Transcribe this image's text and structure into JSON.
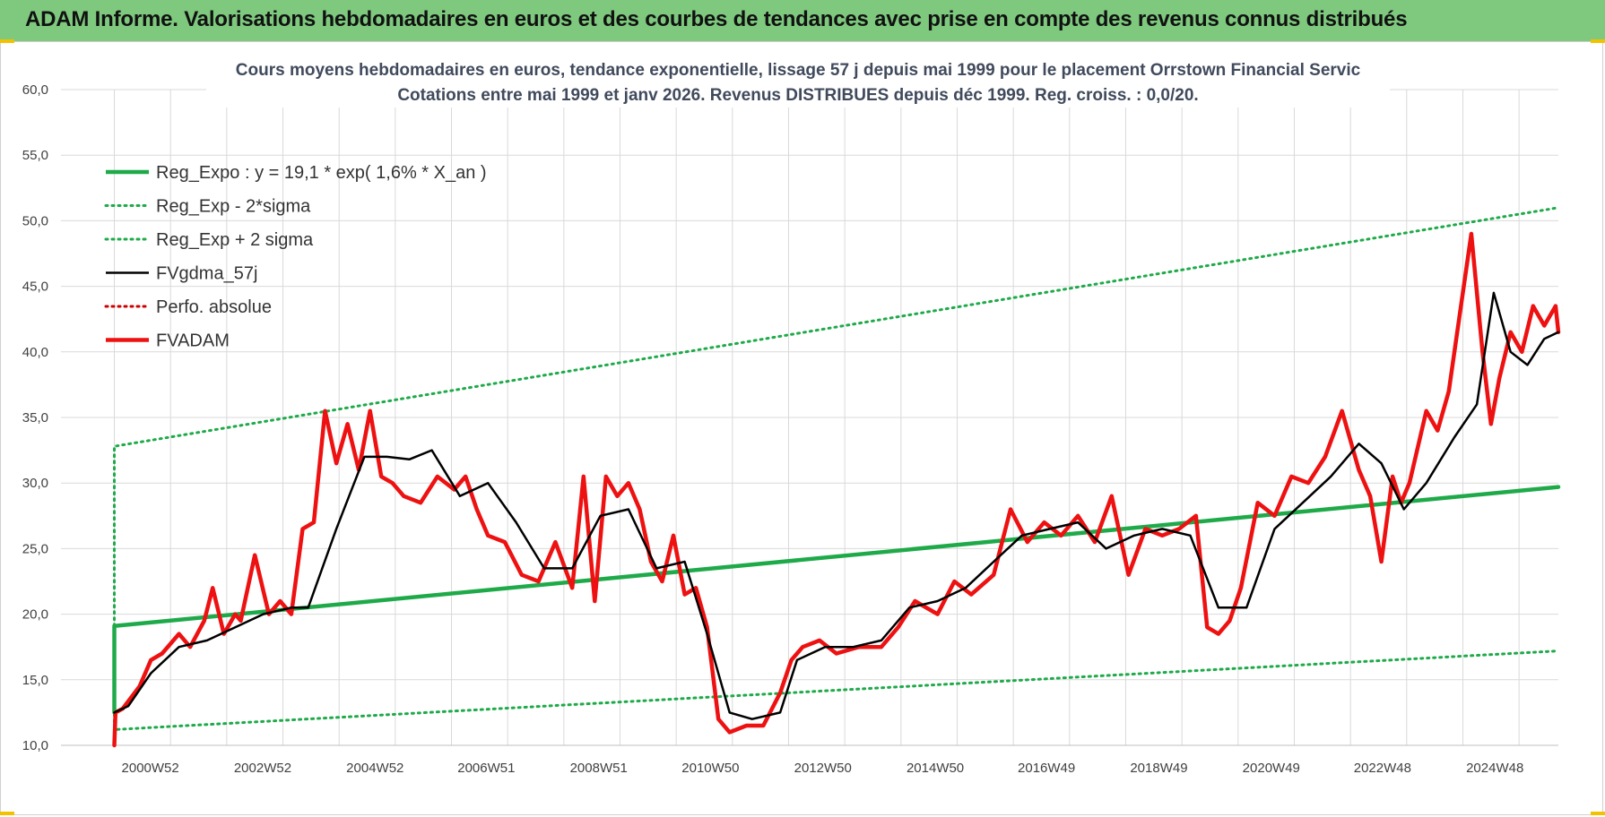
{
  "banner": {
    "title": "ADAM Informe. Valorisations hebdomadaires en euros et des courbes de tendances avec prise en compte des revenus connus distribués"
  },
  "colors": {
    "banner_bg": "#7ec97e",
    "regression": "#1faa4a",
    "sigma_band": "#1faa4a",
    "smoothed": "#000000",
    "price": "#ee1111",
    "perf": "#cc0000",
    "grid": "#d9d9d9"
  },
  "chart_data": {
    "type": "line",
    "title": "Cours moyens hebdomadaires en euros, tendance exponentielle, lissage 57 j depuis mai 1999 pour le placement Orrstown Financial Servic",
    "subtitle": "Cotations entre mai 1999 et janv 2026. Revenus DISTRIBUES depuis déc 1999. Reg. croiss. : 0,0/20.",
    "xlabel": "",
    "ylabel": "",
    "ylim": [
      10,
      60
    ],
    "y_ticks": [
      "10,0",
      "15,0",
      "20,0",
      "25,0",
      "30,0",
      "35,0",
      "40,0",
      "45,0",
      "50,0",
      "55,0",
      "60,0"
    ],
    "xlim": [
      1999.4,
      2026.05
    ],
    "x_ticks": [
      {
        "label": "2000W52",
        "x": 2000.99
      },
      {
        "label": "2002W52",
        "x": 2002.99
      },
      {
        "label": "2004W52",
        "x": 2004.99
      },
      {
        "label": "2006W51",
        "x": 2006.97
      },
      {
        "label": "2008W51",
        "x": 2008.97
      },
      {
        "label": "2010W50",
        "x": 2010.96
      },
      {
        "label": "2012W50",
        "x": 2012.96
      },
      {
        "label": "2014W50",
        "x": 2014.96
      },
      {
        "label": "2016W49",
        "x": 2016.94
      },
      {
        "label": "2018W49",
        "x": 2018.94
      },
      {
        "label": "2020W49",
        "x": 2020.94
      },
      {
        "label": "2022W48",
        "x": 2022.92
      },
      {
        "label": "2024W48",
        "x": 2024.92
      }
    ],
    "grid": true,
    "legend_position": "top-left",
    "series": [
      {
        "name": "Reg_Expo : y = 19,1 * exp( 1,6% *  X_an )",
        "style": "solid-thick",
        "color": "#1faa4a",
        "x": [
          2000.35,
          2026.05
        ],
        "y": [
          19.1,
          29.7
        ]
      },
      {
        "name": "Reg_Exp - 2*sigma",
        "style": "dotted",
        "color": "#1faa4a",
        "x": [
          2000.35,
          2026.05
        ],
        "y": [
          11.2,
          17.2
        ]
      },
      {
        "name": "Reg_Exp + 2 sigma",
        "style": "dotted",
        "color": "#1faa4a",
        "x": [
          2000.35,
          2026.05
        ],
        "y": [
          32.8,
          51.0
        ]
      },
      {
        "name": "FVgdma_57j",
        "style": "solid",
        "color": "#000000",
        "x": [
          2000.35,
          2000.6,
          2001.0,
          2001.5,
          2002.0,
          2002.5,
          2003.0,
          2003.5,
          2003.8,
          2004.3,
          2004.8,
          2005.2,
          2005.6,
          2006.0,
          2006.5,
          2007.0,
          2007.5,
          2008.0,
          2008.5,
          2009.0,
          2009.5,
          2010.0,
          2010.5,
          2010.9,
          2011.3,
          2011.7,
          2012.2,
          2012.5,
          2013.0,
          2013.5,
          2014.0,
          2014.5,
          2015.0,
          2015.5,
          2016.0,
          2016.5,
          2017.0,
          2017.5,
          2018.0,
          2018.5,
          2019.0,
          2019.5,
          2020.0,
          2020.5,
          2021.0,
          2021.5,
          2022.0,
          2022.5,
          2022.9,
          2023.3,
          2023.7,
          2024.2,
          2024.6,
          2024.9,
          2025.2,
          2025.5,
          2025.8,
          2026.05
        ],
        "y": [
          12.5,
          13.0,
          15.5,
          17.5,
          18.0,
          19.0,
          20.0,
          20.5,
          20.5,
          26.5,
          32.0,
          32.0,
          31.8,
          32.5,
          29.0,
          30.0,
          27.0,
          23.5,
          23.5,
          27.5,
          28.0,
          23.5,
          24.0,
          18.5,
          12.5,
          12.0,
          12.5,
          16.5,
          17.5,
          17.5,
          18.0,
          20.5,
          21.0,
          22.0,
          24.0,
          26.0,
          26.5,
          27.0,
          25.0,
          26.0,
          26.5,
          26.0,
          20.5,
          20.5,
          26.5,
          28.5,
          30.5,
          33.0,
          31.5,
          28.0,
          30.0,
          33.5,
          36.0,
          44.5,
          40.0,
          39.0,
          41.0,
          41.5
        ]
      },
      {
        "name": "Perfo. absolue",
        "style": "dotted",
        "color": "#cc0000",
        "x": [],
        "y": []
      },
      {
        "name": "FVADAM",
        "style": "solid-thick",
        "color": "#ee1111",
        "x": [
          2000.35,
          2000.37,
          2000.5,
          2000.8,
          2001.0,
          2001.2,
          2001.5,
          2001.7,
          2001.95,
          2002.1,
          2002.3,
          2002.5,
          2002.6,
          2002.85,
          2003.1,
          2003.3,
          2003.5,
          2003.7,
          2003.9,
          2004.1,
          2004.3,
          2004.5,
          2004.7,
          2004.9,
          2005.1,
          2005.3,
          2005.5,
          2005.8,
          2006.1,
          2006.4,
          2006.6,
          2006.8,
          2007.0,
          2007.3,
          2007.6,
          2007.9,
          2008.2,
          2008.5,
          2008.7,
          2008.9,
          2009.1,
          2009.3,
          2009.5,
          2009.7,
          2009.9,
          2010.1,
          2010.3,
          2010.5,
          2010.7,
          2010.9,
          2011.1,
          2011.3,
          2011.6,
          2011.9,
          2012.2,
          2012.4,
          2012.6,
          2012.9,
          2013.2,
          2013.6,
          2014.0,
          2014.3,
          2014.6,
          2015.0,
          2015.3,
          2015.6,
          2016.0,
          2016.3,
          2016.6,
          2016.9,
          2017.2,
          2017.5,
          2017.8,
          2018.1,
          2018.4,
          2018.7,
          2019.0,
          2019.3,
          2019.6,
          2019.8,
          2020.0,
          2020.2,
          2020.4,
          2020.7,
          2021.0,
          2021.3,
          2021.6,
          2021.9,
          2022.2,
          2022.5,
          2022.7,
          2022.9,
          2023.1,
          2023.25,
          2023.4,
          2023.7,
          2023.9,
          2024.1,
          2024.3,
          2024.5,
          2024.7,
          2024.85,
          2025.0,
          2025.2,
          2025.4,
          2025.6,
          2025.8,
          2026.0,
          2026.05
        ],
        "y": [
          10.0,
          12.5,
          12.8,
          14.5,
          16.5,
          17.0,
          18.5,
          17.5,
          19.5,
          22.0,
          18.5,
          20.0,
          19.5,
          24.5,
          20.0,
          21.0,
          20.0,
          26.5,
          27.0,
          35.5,
          31.5,
          34.5,
          31.0,
          35.5,
          30.5,
          30.0,
          29.0,
          28.5,
          30.5,
          29.5,
          30.5,
          28.0,
          26.0,
          25.5,
          23.0,
          22.5,
          25.5,
          22.0,
          30.5,
          21.0,
          30.5,
          29.0,
          30.0,
          28.0,
          24.0,
          22.5,
          26.0,
          21.5,
          22.0,
          19.0,
          12.0,
          11.0,
          11.5,
          11.5,
          14.0,
          16.5,
          17.5,
          18.0,
          17.0,
          17.5,
          17.5,
          19.0,
          21.0,
          20.0,
          22.5,
          21.5,
          23.0,
          28.0,
          25.5,
          27.0,
          26.0,
          27.5,
          25.5,
          29.0,
          23.0,
          26.5,
          26.0,
          26.5,
          27.5,
          19.0,
          18.5,
          19.5,
          22.0,
          28.5,
          27.5,
          30.5,
          30.0,
          32.0,
          35.5,
          31.0,
          29.0,
          24.0,
          30.5,
          28.5,
          30.0,
          35.5,
          34.0,
          37.0,
          43.0,
          49.0,
          40.0,
          34.5,
          38.0,
          41.5,
          40.0,
          43.5,
          42.0,
          43.5,
          41.5
        ]
      }
    ]
  }
}
